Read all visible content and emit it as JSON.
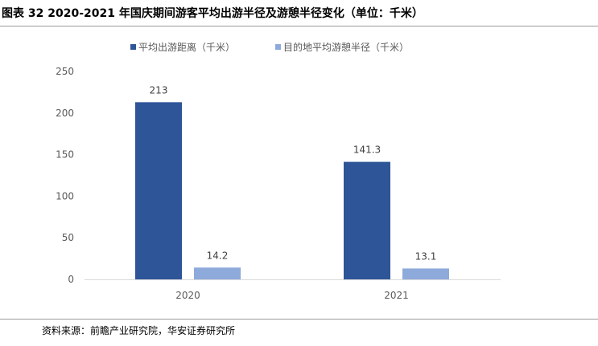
{
  "figure": {
    "title": "图表 32 2020-2021 年国庆期间游客平均出游半径及游憩半径变化（单位：千米）",
    "source": "资料来源：前瞻产业研究院，华安证券研究所"
  },
  "chart_data": {
    "type": "bar",
    "categories": [
      "2020",
      "2021"
    ],
    "series": [
      {
        "name": "平均出游距离（千米）",
        "values": [
          213,
          141.3
        ],
        "color": "#2e5597"
      },
      {
        "name": "目的地平均游憩半径（千米）",
        "values": [
          14.2,
          13.1
        ],
        "color": "#8eaadb"
      }
    ],
    "data_labels": [
      [
        "213",
        "141.3"
      ],
      [
        "14.2",
        "13.1"
      ]
    ],
    "ylim": [
      0,
      250
    ],
    "yticks": [
      0,
      50,
      100,
      150,
      200,
      250
    ],
    "grid": false,
    "legend_position": "top"
  }
}
